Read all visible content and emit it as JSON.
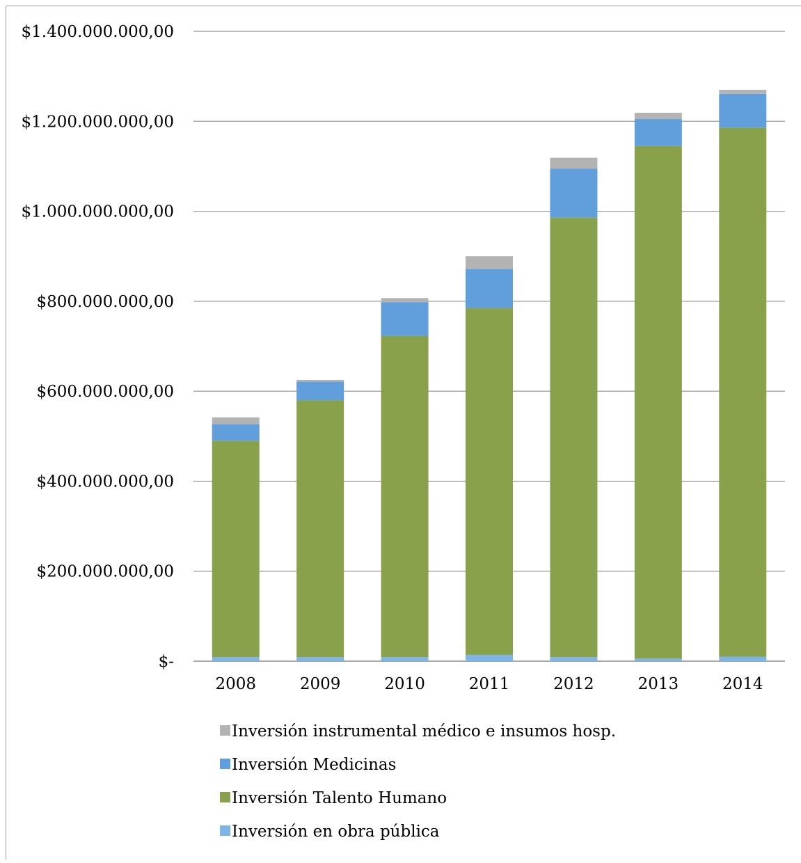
{
  "chart_data": {
    "type": "bar",
    "stacked": true,
    "categories": [
      "2008",
      "2009",
      "2010",
      "2011",
      "2012",
      "2013",
      "2014"
    ],
    "series": [
      {
        "name": "Inversión en obra pública",
        "color": "#7fb4e6",
        "values": [
          9000000,
          9000000,
          9000000,
          14000000,
          9000000,
          6000000,
          10000000
        ]
      },
      {
        "name": "Inversión Talento Humano",
        "color": "#8aa14b",
        "values": [
          481000000,
          571000000,
          714000000,
          771000000,
          977000000,
          1139000000,
          1176000000
        ]
      },
      {
        "name": "Inversión Medicinas",
        "color": "#619fdc",
        "values": [
          37000000,
          41000000,
          75000000,
          87000000,
          109000000,
          60000000,
          75000000
        ]
      },
      {
        "name": "Inversión instrumental médico e insumos hosp.",
        "color": "#b3b3b3",
        "values": [
          15000000,
          4000000,
          9000000,
          28000000,
          24000000,
          14000000,
          9000000
        ]
      }
    ],
    "yticks": [
      "$-",
      "$200.000.000,00",
      "$400.000.000,00",
      "$600.000.000,00",
      "$800.000.000,00",
      "$1.000.000.000,00",
      "$1.200.000.000,00",
      "$1.400.000.000,00"
    ],
    "ylim": [
      0,
      1400000000
    ],
    "grid": true,
    "legend_position": "bottom",
    "legend_order": [
      3,
      2,
      1,
      0
    ]
  }
}
